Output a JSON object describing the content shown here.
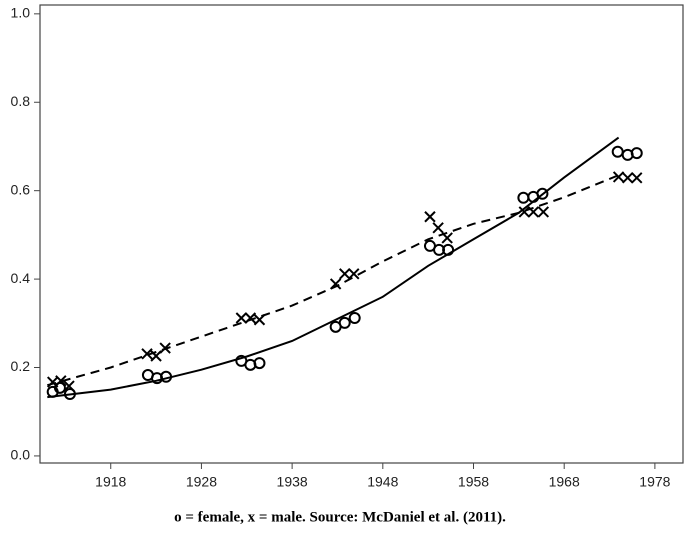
{
  "chart_data": {
    "type": "scatter",
    "caption": "o = female, x = male.  Source: McDaniel et al. (2011).",
    "xlim": [
      1910.2,
      1981.1
    ],
    "ylim": [
      -0.016,
      1.02
    ],
    "xticks": [
      1918,
      1928,
      1938,
      1948,
      1958,
      1968,
      1978
    ],
    "yticks": [
      {
        "value": 0,
        "label": "0.0"
      },
      0.2,
      0.4,
      0.6,
      0.8,
      {
        "value": 1,
        "label": "1.0"
      }
    ],
    "series": [
      {
        "color": "#000000",
        "marker": "circle",
        "x": [
          1911.6,
          1912.4,
          1913.5,
          1922.1,
          1923.1,
          1924.1,
          1932.4,
          1933.4,
          1934.4,
          1942.8,
          1943.8,
          1944.9,
          1953.2,
          1954.2,
          1955.2,
          1963.5,
          1964.6,
          1965.6,
          1973.9,
          1975.0,
          1976.0
        ],
        "values": [
          0.145,
          0.154,
          0.14,
          0.183,
          0.176,
          0.179,
          0.215,
          0.206,
          0.21,
          0.292,
          0.301,
          0.312,
          0.475,
          0.466,
          0.466,
          0.584,
          0.586,
          0.593,
          0.688,
          0.681,
          0.685
        ]
      },
      {
        "color": "#000000",
        "marker": "x",
        "x": [
          1911.6,
          1912.5,
          1913.4,
          1922.0,
          1923.0,
          1924.0,
          1932.4,
          1933.4,
          1934.4,
          1942.8,
          1943.8,
          1944.8,
          1953.2,
          1954.1,
          1955.1,
          1963.6,
          1964.6,
          1965.7,
          1974.0,
          1975.0,
          1976.0
        ],
        "values": [
          0.167,
          0.17,
          0.158,
          0.231,
          0.226,
          0.244,
          0.312,
          0.312,
          0.308,
          0.389,
          0.412,
          0.412,
          0.541,
          0.516,
          0.493,
          0.552,
          0.552,
          0.552,
          0.631,
          0.629,
          0.629
        ]
      },
      {
        "color": "#000000",
        "marker": "none",
        "line": "solid",
        "x": [
          1911,
          1918,
          1923,
          1928,
          1933,
          1938,
          1943,
          1948,
          1953,
          1958,
          1963,
          1968,
          1974
        ],
        "values": [
          0.133,
          0.15,
          0.17,
          0.195,
          0.225,
          0.26,
          0.31,
          0.36,
          0.43,
          0.49,
          0.55,
          0.63,
          0.72
        ]
      },
      {
        "color": "#000000",
        "marker": "none",
        "line": "dashed",
        "x": [
          1911,
          1918,
          1923,
          1928,
          1933,
          1938,
          1943,
          1948,
          1953,
          1958,
          1963,
          1968,
          1974
        ],
        "values": [
          0.16,
          0.2,
          0.235,
          0.27,
          0.305,
          0.34,
          0.385,
          0.44,
          0.49,
          0.525,
          0.55,
          0.585,
          0.635
        ]
      }
    ]
  }
}
